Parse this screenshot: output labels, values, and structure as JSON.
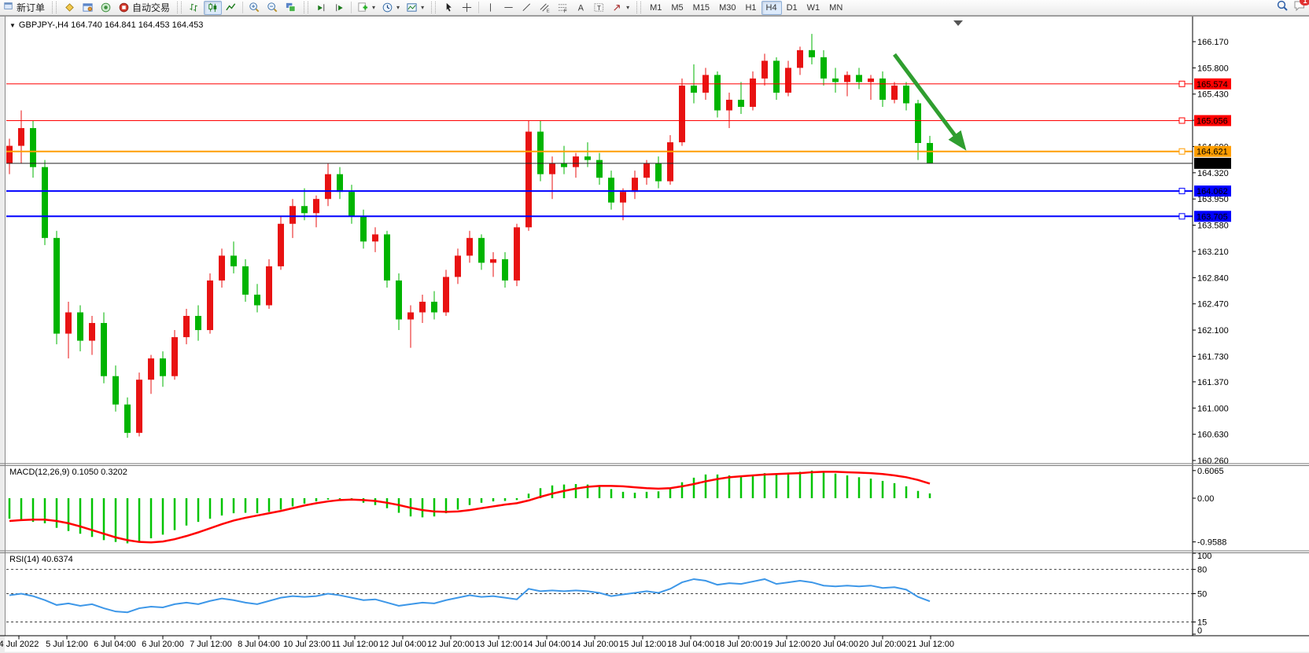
{
  "toolbar": {
    "new_order_label": "新订单",
    "auto_trading_label": "自动交易",
    "timeframes": [
      "M1",
      "M5",
      "M15",
      "M30",
      "H1",
      "H4",
      "D1",
      "W1",
      "MN"
    ],
    "active_timeframe": "H4",
    "notification_badge": "1",
    "icon_names": [
      "window-icon",
      "market-watch-icon",
      "data-window-icon",
      "navigator-icon",
      "auto-trading-icon",
      "bar-chart-icon",
      "candlestick-chart-icon",
      "line-chart-icon",
      "zoom-in-icon",
      "zoom-out-icon",
      "tile-windows-icon",
      "auto-scroll-icon",
      "chart-shift-icon",
      "indicators-icon",
      "periods-icon",
      "templates-icon",
      "cursor-icon",
      "crosshair-icon",
      "vertical-line-icon",
      "horizontal-line-icon",
      "trendline-icon",
      "channel-icon",
      "fibonacci-icon",
      "text-icon",
      "label-icon",
      "arrows-icon",
      "search-icon",
      "chat-icon"
    ]
  },
  "chart": {
    "title": "GBPJPY-,H4 164.740 164.841 164.453 164.453",
    "macd_label": "MACD(12,26,9) 0.1050 0.3202",
    "rsi_label": "RSI(14) 40.6374"
  },
  "chart_data": [
    {
      "type": "candlestick",
      "symbol": "GBPJPY-",
      "timeframe": "H4",
      "last_bar": {
        "open": 164.74,
        "high": 164.841,
        "low": 164.453,
        "close": 164.453
      },
      "up_color": "#e81212",
      "down_color": "#00b400",
      "price_ticks": [
        "166.170",
        "165.800",
        "165.430",
        "165.060",
        "164.690",
        "164.320",
        "163.950",
        "163.580",
        "163.210",
        "162.840",
        "162.470",
        "162.100",
        "161.730",
        "161.370",
        "161.000",
        "160.630",
        "160.260"
      ],
      "x_labels": [
        "4 Jul 2022",
        "5 Jul 12:00",
        "6 Jul 04:00",
        "6 Jul 20:00",
        "7 Jul 12:00",
        "8 Jul 04:00",
        "10 Jul 23:00",
        "11 Jul 12:00",
        "12 Jul 04:00",
        "12 Jul 20:00",
        "13 Jul 12:00",
        "14 Jul 04:00",
        "14 Jul 20:00",
        "15 Jul 12:00",
        "18 Jul 04:00",
        "18 Jul 20:00",
        "19 Jul 12:00",
        "20 Jul 04:00",
        "20 Jul 20:00",
        "21 Jul 12:00"
      ],
      "hlines": [
        {
          "price": 165.574,
          "label": "165.574",
          "color": "#ff0000",
          "width": 1
        },
        {
          "price": 165.056,
          "label": "165.056",
          "color": "#ff0000",
          "width": 1
        },
        {
          "price": 164.621,
          "label": "164.621",
          "color": "#ff9d00",
          "width": 2
        },
        {
          "price": 164.062,
          "label": "164.062",
          "color": "#0000ff",
          "width": 2
        },
        {
          "price": 163.705,
          "label": "163.705",
          "color": "#0000ff",
          "width": 2
        }
      ],
      "current_price": {
        "value": 164.453,
        "label": "164.453",
        "color": "#000000"
      },
      "arrow": {
        "from_candle": 75,
        "from_price": 165.99,
        "to_candle": 80.7,
        "to_price": 164.72,
        "color": "#2f9e2f"
      },
      "ohlc": [
        [
          164.45,
          164.8,
          164.3,
          164.7
        ],
        [
          164.7,
          165.2,
          164.45,
          164.95
        ],
        [
          164.95,
          165.05,
          164.25,
          164.4
        ],
        [
          164.4,
          164.5,
          163.3,
          163.4
        ],
        [
          163.4,
          163.5,
          161.9,
          162.05
        ],
        [
          162.05,
          162.5,
          161.7,
          162.35
        ],
        [
          162.35,
          162.45,
          161.8,
          161.95
        ],
        [
          161.95,
          162.3,
          161.75,
          162.2
        ],
        [
          162.2,
          162.35,
          161.35,
          161.45
        ],
        [
          161.45,
          161.6,
          160.95,
          161.05
        ],
        [
          161.05,
          161.15,
          160.58,
          160.65
        ],
        [
          160.65,
          161.5,
          160.6,
          161.4
        ],
        [
          161.4,
          161.75,
          161.2,
          161.7
        ],
        [
          161.7,
          161.8,
          161.3,
          161.45
        ],
        [
          161.45,
          162.1,
          161.4,
          162.0
        ],
        [
          162.0,
          162.4,
          161.9,
          162.3
        ],
        [
          162.3,
          162.45,
          161.95,
          162.1
        ],
        [
          162.1,
          162.9,
          162.05,
          162.8
        ],
        [
          162.8,
          163.25,
          162.7,
          163.15
        ],
        [
          163.15,
          163.35,
          162.9,
          163.0
        ],
        [
          163.0,
          163.1,
          162.5,
          162.6
        ],
        [
          162.6,
          162.75,
          162.35,
          162.45
        ],
        [
          162.45,
          163.1,
          162.4,
          163.0
        ],
        [
          163.0,
          163.7,
          162.95,
          163.6
        ],
        [
          163.6,
          163.95,
          163.4,
          163.85
        ],
        [
          163.85,
          164.1,
          163.65,
          163.75
        ],
        [
          163.75,
          164.0,
          163.55,
          163.95
        ],
        [
          163.95,
          164.45,
          163.85,
          164.3
        ],
        [
          164.3,
          164.4,
          163.95,
          164.05
        ],
        [
          164.05,
          164.15,
          163.6,
          163.7
        ],
        [
          163.7,
          163.8,
          163.25,
          163.35
        ],
        [
          163.35,
          163.55,
          163.2,
          163.45
        ],
        [
          163.45,
          163.5,
          162.7,
          162.8
        ],
        [
          162.8,
          162.9,
          162.1,
          162.25
        ],
        [
          162.25,
          162.45,
          161.85,
          162.35
        ],
        [
          162.35,
          162.6,
          162.2,
          162.5
        ],
        [
          162.5,
          162.65,
          162.25,
          162.35
        ],
        [
          162.35,
          162.95,
          162.3,
          162.85
        ],
        [
          162.85,
          163.25,
          162.75,
          163.15
        ],
        [
          163.15,
          163.5,
          163.05,
          163.4
        ],
        [
          163.4,
          163.45,
          162.95,
          163.05
        ],
        [
          163.05,
          163.2,
          162.85,
          163.1
        ],
        [
          163.1,
          163.2,
          162.7,
          162.8
        ],
        [
          162.8,
          163.6,
          162.72,
          163.55
        ],
        [
          163.55,
          165.06,
          163.5,
          164.9
        ],
        [
          164.9,
          165.05,
          164.2,
          164.3
        ],
        [
          164.3,
          164.55,
          163.95,
          164.45
        ],
        [
          164.45,
          164.7,
          164.3,
          164.4
        ],
        [
          164.4,
          164.6,
          164.25,
          164.55
        ],
        [
          164.55,
          164.75,
          164.4,
          164.5
        ],
        [
          164.5,
          164.6,
          164.15,
          164.25
        ],
        [
          164.25,
          164.35,
          163.8,
          163.9
        ],
        [
          163.9,
          164.1,
          163.65,
          164.05
        ],
        [
          164.05,
          164.35,
          163.95,
          164.25
        ],
        [
          164.25,
          164.5,
          164.15,
          164.45
        ],
        [
          164.45,
          164.55,
          164.1,
          164.2
        ],
        [
          164.2,
          164.85,
          164.15,
          164.75
        ],
        [
          164.75,
          165.65,
          164.7,
          165.55
        ],
        [
          165.55,
          165.85,
          165.3,
          165.45
        ],
        [
          165.45,
          165.8,
          165.35,
          165.7
        ],
        [
          165.7,
          165.75,
          165.1,
          165.2
        ],
        [
          165.2,
          165.45,
          164.95,
          165.35
        ],
        [
          165.35,
          165.6,
          165.15,
          165.25
        ],
        [
          165.25,
          165.75,
          165.2,
          165.65
        ],
        [
          165.65,
          166.0,
          165.55,
          165.9
        ],
        [
          165.9,
          165.95,
          165.35,
          165.45
        ],
        [
          165.45,
          165.9,
          165.4,
          165.8
        ],
        [
          165.8,
          166.1,
          165.7,
          166.05
        ],
        [
          166.05,
          166.28,
          165.85,
          165.95
        ],
        [
          165.95,
          166.05,
          165.55,
          165.65
        ],
        [
          165.65,
          165.8,
          165.45,
          165.6
        ],
        [
          165.6,
          165.75,
          165.4,
          165.7
        ],
        [
          165.7,
          165.8,
          165.5,
          165.6
        ],
        [
          165.6,
          165.7,
          165.35,
          165.65
        ],
        [
          165.65,
          165.75,
          165.25,
          165.35
        ],
        [
          165.35,
          165.6,
          165.3,
          165.55
        ],
        [
          165.55,
          165.6,
          165.2,
          165.3
        ],
        [
          165.3,
          165.35,
          164.5,
          164.74
        ],
        [
          164.74,
          164.841,
          164.453,
          164.453
        ]
      ]
    },
    {
      "type": "bar",
      "name": "MACD",
      "params": [
        12,
        26,
        9
      ],
      "value_labels": [
        "0.1050",
        "0.3202"
      ],
      "y_ticks": [
        "0.6065",
        "0.00",
        "-0.9588"
      ],
      "histogram_color": "#00c400",
      "signal_color": "#ff0000",
      "histogram": [
        -0.45,
        -0.5,
        -0.52,
        -0.55,
        -0.65,
        -0.72,
        -0.78,
        -0.85,
        -0.92,
        -0.96,
        -0.99,
        -0.95,
        -0.88,
        -0.8,
        -0.7,
        -0.6,
        -0.52,
        -0.45,
        -0.38,
        -0.33,
        -0.32,
        -0.33,
        -0.3,
        -0.25,
        -0.18,
        -0.12,
        -0.07,
        -0.03,
        -0.02,
        -0.05,
        -0.1,
        -0.15,
        -0.22,
        -0.32,
        -0.4,
        -0.42,
        -0.4,
        -0.33,
        -0.25,
        -0.15,
        -0.1,
        -0.07,
        -0.06,
        -0.04,
        0.1,
        0.22,
        0.28,
        0.3,
        0.31,
        0.3,
        0.27,
        0.2,
        0.14,
        0.12,
        0.14,
        0.15,
        0.22,
        0.35,
        0.45,
        0.52,
        0.52,
        0.5,
        0.49,
        0.51,
        0.55,
        0.54,
        0.55,
        0.58,
        0.6065,
        0.58,
        0.54,
        0.5,
        0.46,
        0.43,
        0.38,
        0.33,
        0.26,
        0.16,
        0.105
      ],
      "signal": [
        -0.5,
        -0.48,
        -0.47,
        -0.47,
        -0.5,
        -0.55,
        -0.62,
        -0.7,
        -0.78,
        -0.86,
        -0.92,
        -0.96,
        -0.97,
        -0.95,
        -0.9,
        -0.83,
        -0.75,
        -0.66,
        -0.57,
        -0.49,
        -0.43,
        -0.38,
        -0.33,
        -0.28,
        -0.22,
        -0.16,
        -0.11,
        -0.07,
        -0.04,
        -0.03,
        -0.04,
        -0.06,
        -0.1,
        -0.15,
        -0.21,
        -0.26,
        -0.29,
        -0.3,
        -0.29,
        -0.26,
        -0.22,
        -0.18,
        -0.14,
        -0.11,
        -0.05,
        0.03,
        0.1,
        0.16,
        0.21,
        0.25,
        0.27,
        0.27,
        0.26,
        0.24,
        0.22,
        0.21,
        0.22,
        0.26,
        0.31,
        0.37,
        0.42,
        0.46,
        0.48,
        0.5,
        0.52,
        0.53,
        0.54,
        0.55,
        0.57,
        0.58,
        0.58,
        0.57,
        0.56,
        0.55,
        0.53,
        0.5,
        0.46,
        0.4,
        0.3202
      ]
    },
    {
      "type": "line",
      "name": "RSI",
      "period": 14,
      "value_label": "40.6374",
      "line_color": "#3d97e8",
      "levels": [
        80,
        50,
        15
      ],
      "y_ticks": [
        "100",
        "80",
        "50",
        "15",
        "0"
      ],
      "values": [
        48,
        50,
        47,
        42,
        36,
        38,
        35,
        37,
        32,
        28,
        27,
        32,
        34,
        33,
        37,
        39,
        37,
        41,
        44,
        42,
        39,
        37,
        41,
        45,
        47,
        46,
        47,
        50,
        48,
        45,
        42,
        43,
        39,
        35,
        37,
        39,
        38,
        42,
        45,
        48,
        46,
        47,
        45,
        43,
        56,
        53,
        54,
        53,
        54,
        53,
        51,
        47,
        49,
        51,
        53,
        51,
        56,
        64,
        68,
        66,
        61,
        63,
        62,
        65,
        68,
        62,
        64,
        66,
        64,
        60,
        59,
        60,
        59,
        60,
        57,
        58,
        55,
        46,
        40.64
      ]
    }
  ]
}
